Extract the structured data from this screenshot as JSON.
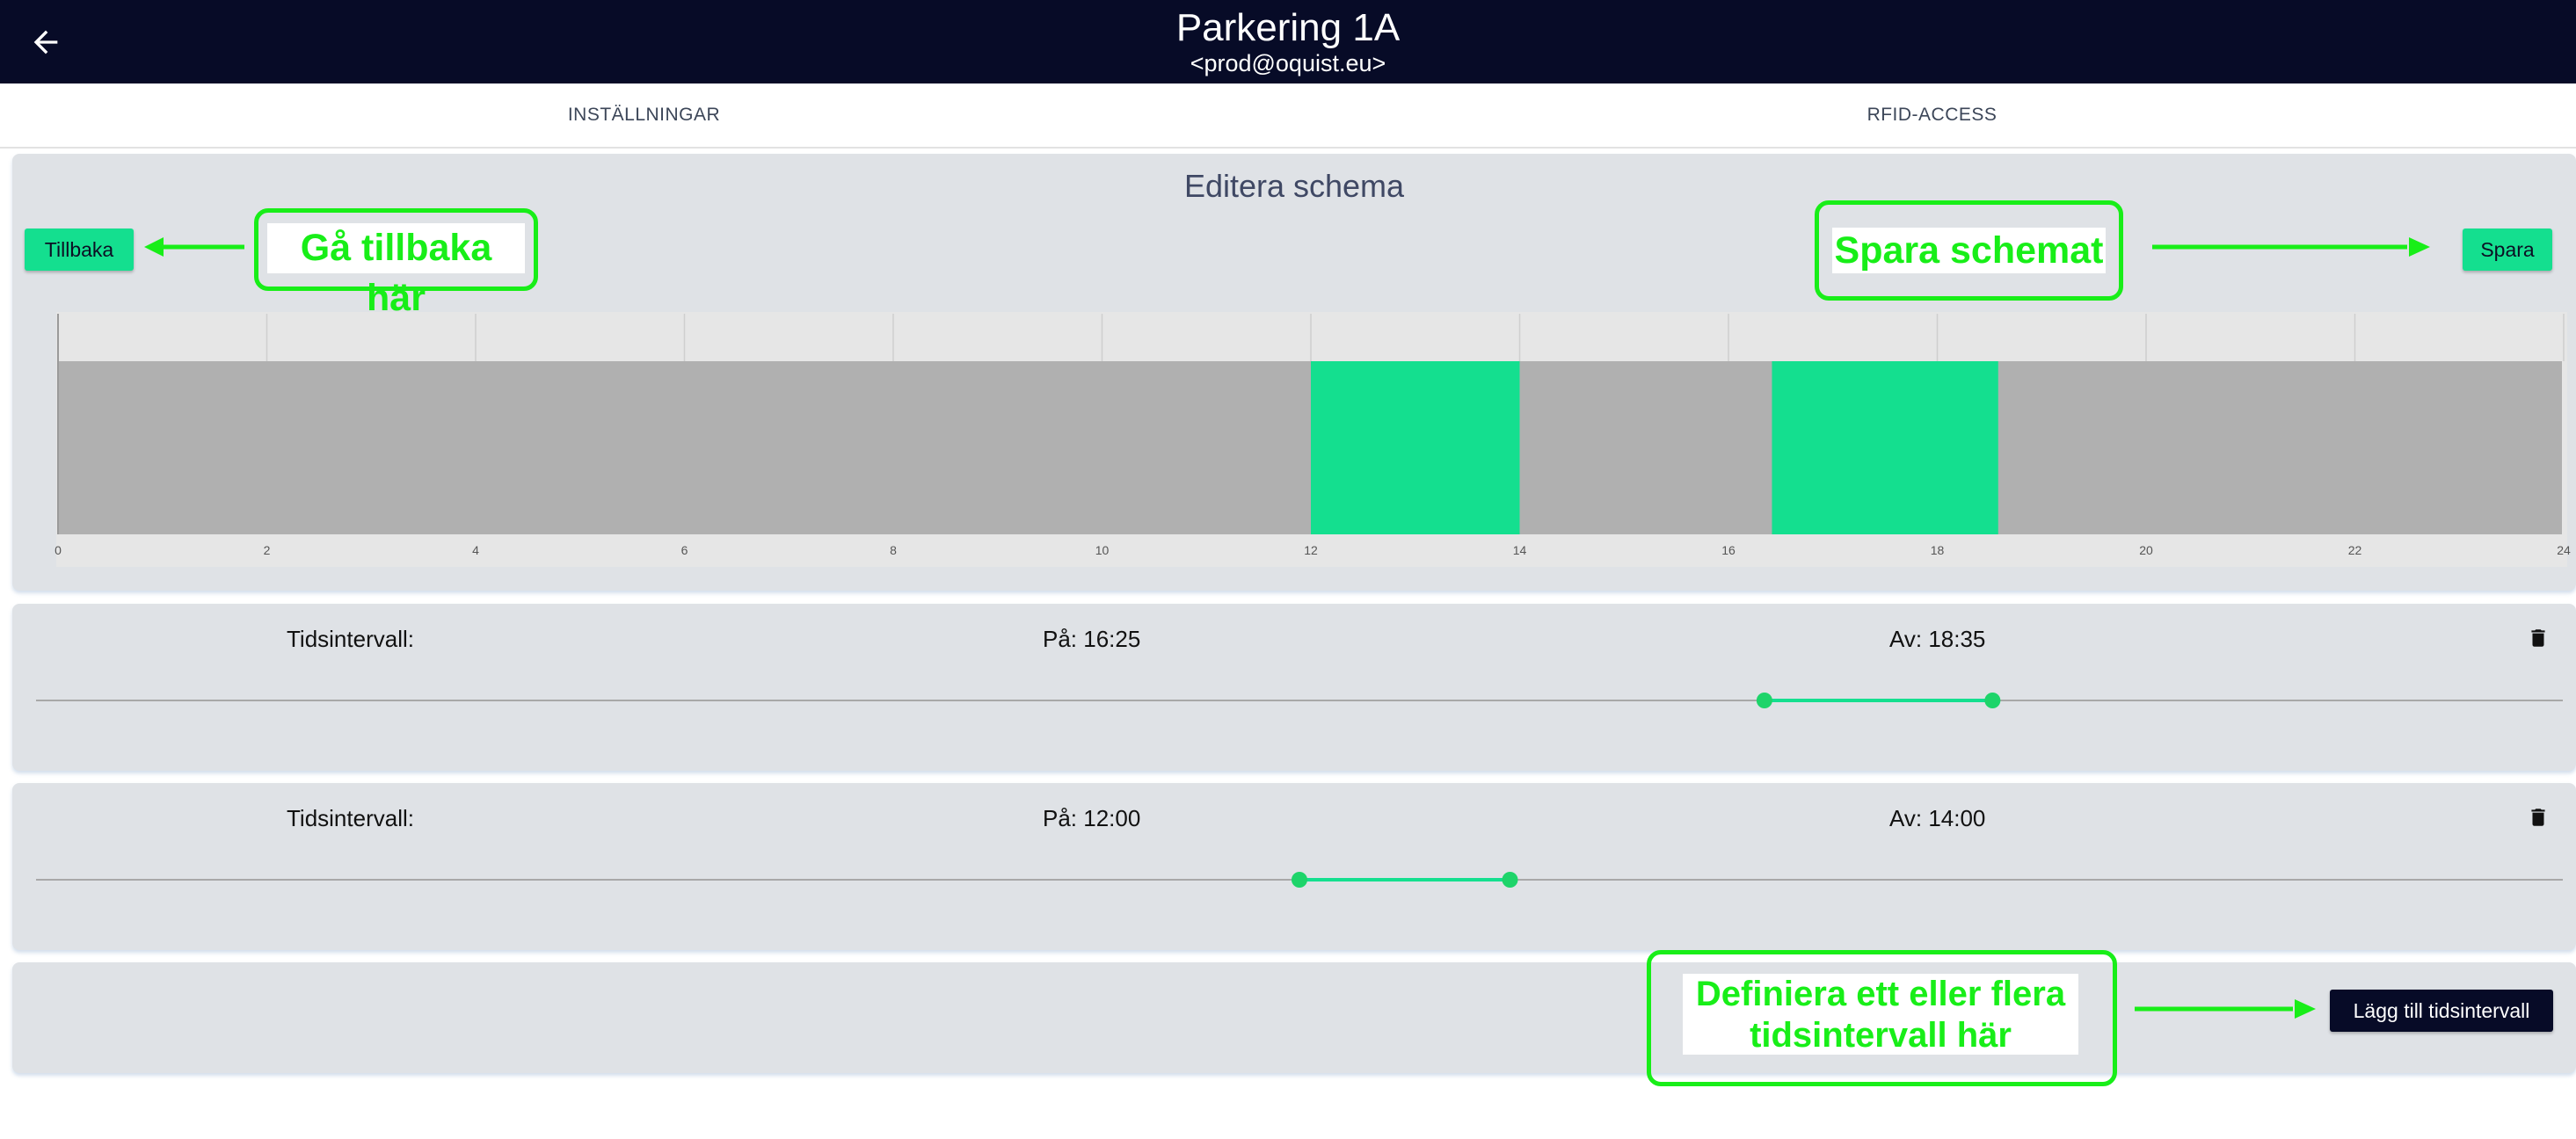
{
  "header": {
    "title": "Parkering 1A",
    "subtitle": "<prod@oquist.eu>"
  },
  "tabs": [
    {
      "label": "INSTÄLLNINGAR"
    },
    {
      "label": "RFID-ACCESS"
    }
  ],
  "editor": {
    "title": "Editera schema",
    "back_label": "Tillbaka",
    "save_label": "Spara"
  },
  "chart_data": {
    "type": "bar",
    "x_ticks": [
      "0",
      "2",
      "4",
      "6",
      "8",
      "10",
      "12",
      "14",
      "16",
      "18",
      "20",
      "22",
      "24"
    ],
    "xlim": [
      0,
      24
    ],
    "active_intervals": [
      {
        "start": 12.0,
        "end": 14.0
      },
      {
        "start": 16.4167,
        "end": 18.5833
      }
    ],
    "colors": {
      "active": "#14df8f",
      "inactive": "#b0b0b0",
      "background": "#e6e6e6"
    }
  },
  "intervals": [
    {
      "label": "Tidsintervall:",
      "on_text": "På: 16:25",
      "off_text": "Av: 18:35",
      "on_value": 16.4167,
      "off_value": 18.5833
    },
    {
      "label": "Tidsintervall:",
      "on_text": "På: 12:00",
      "off_text": "Av: 14:00",
      "on_value": 12.0,
      "off_value": 14.0
    }
  ],
  "add_interval_label": "Lägg till tidsintervall",
  "annotations": {
    "back": "Gå tillbaka här",
    "save": "Spara schemat",
    "define_line1": "Definiera ett eller flera",
    "define_line2": "tidsintervall här"
  },
  "colors": {
    "header_bg": "#070b27",
    "accent": "#14df8f",
    "annotation": "#18ee18",
    "panel_bg": "#dfe2e6"
  },
  "icons": {
    "back": "arrow-left-icon",
    "delete": "trash-icon"
  }
}
